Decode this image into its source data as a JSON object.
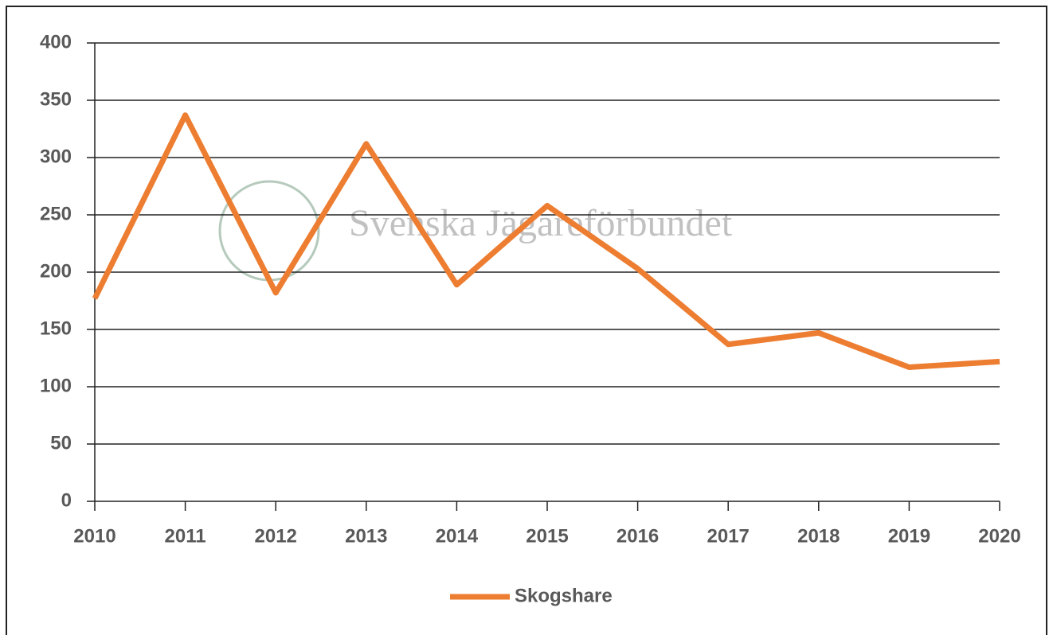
{
  "chart_data": {
    "type": "line",
    "categories": [
      "2010",
      "2011",
      "2012",
      "2013",
      "2014",
      "2015",
      "2016",
      "2017",
      "2018",
      "2019",
      "2020"
    ],
    "series": [
      {
        "name": "Skogshare",
        "color": "#ed7d31",
        "values": [
          177,
          337,
          182,
          312,
          189,
          258,
          203,
          137,
          147,
          117,
          122
        ]
      }
    ],
    "ylim": [
      0,
      400
    ],
    "yticks": [
      0,
      50,
      100,
      150,
      200,
      250,
      300,
      350,
      400
    ],
    "grid": true,
    "legend": "bottom",
    "watermark": "Svenska Jägareförbundet"
  }
}
